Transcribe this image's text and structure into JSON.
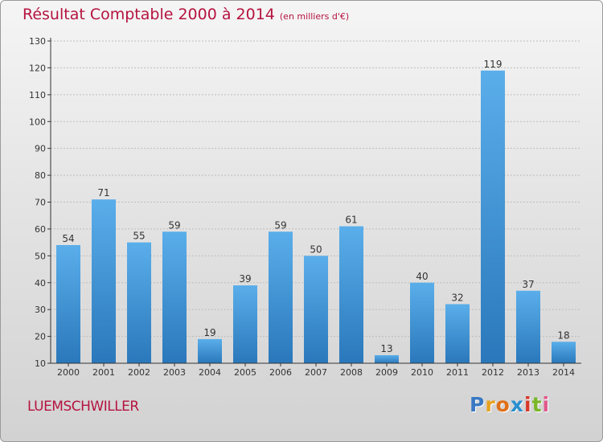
{
  "header": {
    "title": "Résultat Comptable 2000 à 2014",
    "subtitle": "(en milliers d'€)"
  },
  "footer": {
    "town": "LUEMSCHWILLER",
    "logo_letters": [
      "P",
      "r",
      "o",
      "x",
      "i",
      "t",
      "i"
    ],
    "logo_colors": [
      "#3a78c4",
      "#e8a21e",
      "#e07018",
      "#2b8fd0",
      "#d63a2b",
      "#7ab627",
      "#e05a8c"
    ]
  },
  "colors": {
    "bar_top": "#5aaeea",
    "bar_bottom": "#2a78bb",
    "grid": "#bdbdbd",
    "axis": "#333333",
    "title": "#b5133f"
  },
  "chart_data": {
    "type": "bar",
    "categories": [
      "2000",
      "2001",
      "2002",
      "2003",
      "2004",
      "2005",
      "2006",
      "2007",
      "2008",
      "2009",
      "2010",
      "2011",
      "2012",
      "2013",
      "2014"
    ],
    "values": [
      54,
      71,
      55,
      59,
      19,
      39,
      59,
      50,
      61,
      13,
      40,
      32,
      119,
      37,
      18
    ],
    "title": "Résultat Comptable 2000 à 2014",
    "xlabel": "",
    "ylabel": "",
    "ylim": [
      10,
      130
    ],
    "yticks": [
      10,
      20,
      30,
      40,
      50,
      60,
      70,
      80,
      90,
      100,
      110,
      120,
      130
    ],
    "grid": true
  }
}
